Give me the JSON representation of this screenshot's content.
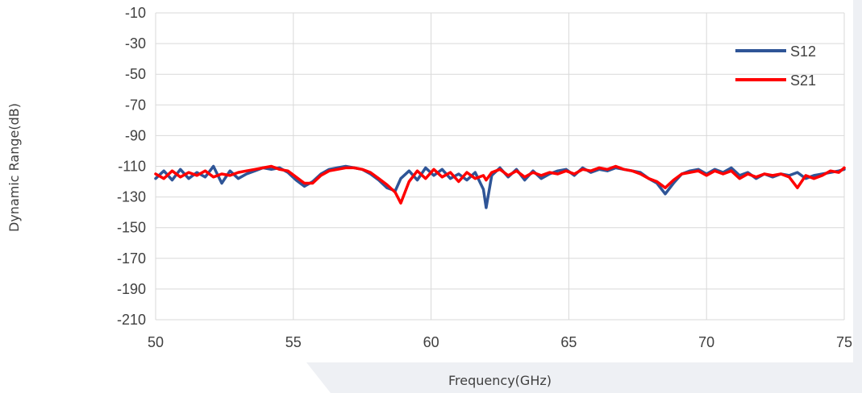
{
  "chart_data": {
    "type": "line",
    "xlabel": "Frequency(GHz)",
    "ylabel": "Dynamic Range(dB)",
    "xlim": [
      50,
      75
    ],
    "ylim": [
      -210,
      -10
    ],
    "xticks": [
      "50",
      "55",
      "60",
      "65",
      "70",
      "75"
    ],
    "yticks": [
      "-10",
      "-30",
      "-50",
      "-70",
      "-90",
      "-110",
      "-130",
      "-150",
      "-170",
      "-190",
      "-210"
    ],
    "grid": true,
    "legend_position": "top-right",
    "series": [
      {
        "name": "S12",
        "color": "#2F5597",
        "x": [
          50.0,
          50.3,
          50.6,
          50.9,
          51.2,
          51.5,
          51.8,
          52.1,
          52.4,
          52.7,
          53.0,
          53.3,
          53.6,
          53.9,
          54.2,
          54.5,
          54.8,
          55.1,
          55.4,
          55.7,
          56.0,
          56.3,
          56.6,
          56.9,
          57.2,
          57.5,
          57.8,
          58.1,
          58.4,
          58.7,
          58.9,
          59.2,
          59.5,
          59.8,
          60.1,
          60.4,
          60.7,
          61.0,
          61.3,
          61.6,
          61.9,
          62.0,
          62.2,
          62.5,
          62.8,
          63.1,
          63.4,
          63.7,
          64.0,
          64.3,
          64.6,
          64.9,
          65.2,
          65.5,
          65.8,
          66.1,
          66.4,
          66.7,
          67.0,
          67.3,
          67.6,
          67.9,
          68.2,
          68.5,
          68.8,
          69.1,
          69.4,
          69.7,
          70.0,
          70.3,
          70.6,
          70.9,
          71.2,
          71.5,
          71.8,
          72.1,
          72.4,
          72.7,
          73.0,
          73.3,
          73.6,
          73.9,
          74.2,
          74.5,
          74.8,
          75.0
        ],
        "y": [
          -118,
          -113,
          -119,
          -112,
          -118,
          -114,
          -117,
          -110,
          -121,
          -113,
          -118,
          -115,
          -113,
          -111,
          -112,
          -111,
          -114,
          -119,
          -123,
          -120,
          -115,
          -112,
          -111,
          -110,
          -111,
          -112,
          -115,
          -119,
          -124,
          -126,
          -118,
          -113,
          -119,
          -111,
          -116,
          -112,
          -118,
          -115,
          -119,
          -114,
          -125,
          -137,
          -116,
          -111,
          -117,
          -112,
          -119,
          -113,
          -118,
          -115,
          -113,
          -112,
          -116,
          -111,
          -114,
          -112,
          -113,
          -111,
          -112,
          -113,
          -114,
          -118,
          -121,
          -128,
          -121,
          -115,
          -113,
          -112,
          -115,
          -112,
          -114,
          -111,
          -116,
          -114,
          -118,
          -115,
          -117,
          -115,
          -116,
          -114,
          -118,
          -116,
          -115,
          -114,
          -113,
          -112
        ]
      },
      {
        "name": "S21",
        "color": "#FF0000",
        "x": [
          50.0,
          50.3,
          50.6,
          50.9,
          51.2,
          51.5,
          51.8,
          52.1,
          52.4,
          52.7,
          53.0,
          53.3,
          53.6,
          53.9,
          54.2,
          54.5,
          54.8,
          55.1,
          55.4,
          55.7,
          56.0,
          56.3,
          56.6,
          56.9,
          57.2,
          57.5,
          57.8,
          58.1,
          58.4,
          58.7,
          58.9,
          59.2,
          59.5,
          59.8,
          60.1,
          60.4,
          60.7,
          61.0,
          61.3,
          61.6,
          61.9,
          62.0,
          62.2,
          62.5,
          62.8,
          63.1,
          63.4,
          63.7,
          64.0,
          64.3,
          64.6,
          64.9,
          65.2,
          65.5,
          65.8,
          66.1,
          66.4,
          66.7,
          67.0,
          67.3,
          67.6,
          67.9,
          68.2,
          68.5,
          68.8,
          69.1,
          69.4,
          69.7,
          70.0,
          70.3,
          70.6,
          70.9,
          71.2,
          71.5,
          71.8,
          72.1,
          72.4,
          72.7,
          73.0,
          73.3,
          73.6,
          73.9,
          74.2,
          74.5,
          74.8,
          75.0
        ],
        "y": [
          -115,
          -118,
          -113,
          -117,
          -114,
          -116,
          -113,
          -117,
          -115,
          -116,
          -114,
          -113,
          -112,
          -111,
          -110,
          -112,
          -113,
          -117,
          -121,
          -121,
          -116,
          -113,
          -112,
          -111,
          -111,
          -112,
          -114,
          -118,
          -122,
          -127,
          -134,
          -120,
          -113,
          -118,
          -112,
          -117,
          -114,
          -120,
          -114,
          -118,
          -116,
          -119,
          -114,
          -112,
          -116,
          -113,
          -117,
          -114,
          -116,
          -114,
          -115,
          -113,
          -115,
          -112,
          -113,
          -111,
          -112,
          -110,
          -112,
          -113,
          -115,
          -118,
          -120,
          -124,
          -119,
          -115,
          -114,
          -113,
          -116,
          -113,
          -115,
          -113,
          -118,
          -115,
          -117,
          -115,
          -116,
          -115,
          -117,
          -124,
          -116,
          -118,
          -116,
          -113,
          -114,
          -111
        ]
      }
    ]
  }
}
